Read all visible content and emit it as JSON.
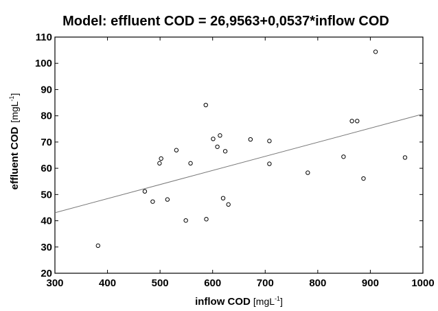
{
  "chart_data": {
    "type": "scatter",
    "title": "Model:  effluent COD = 26,9563+0,0537*inflow COD",
    "xlabel": "inflow COD",
    "xlabel_unit": "[mgL",
    "xlabel_unit_sup": "-1",
    "xlabel_unit_close": "]",
    "ylabel": "effluent COD",
    "ylabel_unit": "[mgL",
    "ylabel_unit_sup": "-1",
    "ylabel_unit_close": "]",
    "xlim": [
      300,
      1000
    ],
    "ylim": [
      20,
      110
    ],
    "xticks": [
      300,
      400,
      500,
      600,
      700,
      800,
      900,
      1000
    ],
    "yticks": [
      20,
      30,
      40,
      50,
      60,
      70,
      80,
      90,
      100,
      110
    ],
    "xtick_labels": [
      "300",
      "400",
      "500",
      "600",
      "700",
      "800",
      "900",
      "1000"
    ],
    "ytick_labels": [
      "20",
      "30",
      "40",
      "50",
      "60",
      "70",
      "80",
      "90",
      "100",
      "110"
    ],
    "grid": false,
    "regression": {
      "intercept": 26.9563,
      "slope": 0.0537
    },
    "points": [
      {
        "x": 382,
        "y": 30.5
      },
      {
        "x": 471,
        "y": 51.2
      },
      {
        "x": 486,
        "y": 47.3
      },
      {
        "x": 499,
        "y": 61.9
      },
      {
        "x": 502,
        "y": 63.7
      },
      {
        "x": 514,
        "y": 48.1
      },
      {
        "x": 531,
        "y": 66.9
      },
      {
        "x": 549,
        "y": 40.1
      },
      {
        "x": 558,
        "y": 61.9
      },
      {
        "x": 587,
        "y": 84.1
      },
      {
        "x": 588,
        "y": 40.6
      },
      {
        "x": 601,
        "y": 71.2
      },
      {
        "x": 609,
        "y": 68.2
      },
      {
        "x": 614,
        "y": 72.5
      },
      {
        "x": 620,
        "y": 48.6
      },
      {
        "x": 624,
        "y": 66.5
      },
      {
        "x": 630,
        "y": 46.2
      },
      {
        "x": 672,
        "y": 71.0
      },
      {
        "x": 708,
        "y": 70.4
      },
      {
        "x": 708,
        "y": 61.7
      },
      {
        "x": 781,
        "y": 58.3
      },
      {
        "x": 849,
        "y": 64.4
      },
      {
        "x": 865,
        "y": 78.0
      },
      {
        "x": 875,
        "y": 78.0
      },
      {
        "x": 887,
        "y": 56.1
      },
      {
        "x": 910,
        "y": 104.4
      },
      {
        "x": 966,
        "y": 64.1
      }
    ]
  }
}
